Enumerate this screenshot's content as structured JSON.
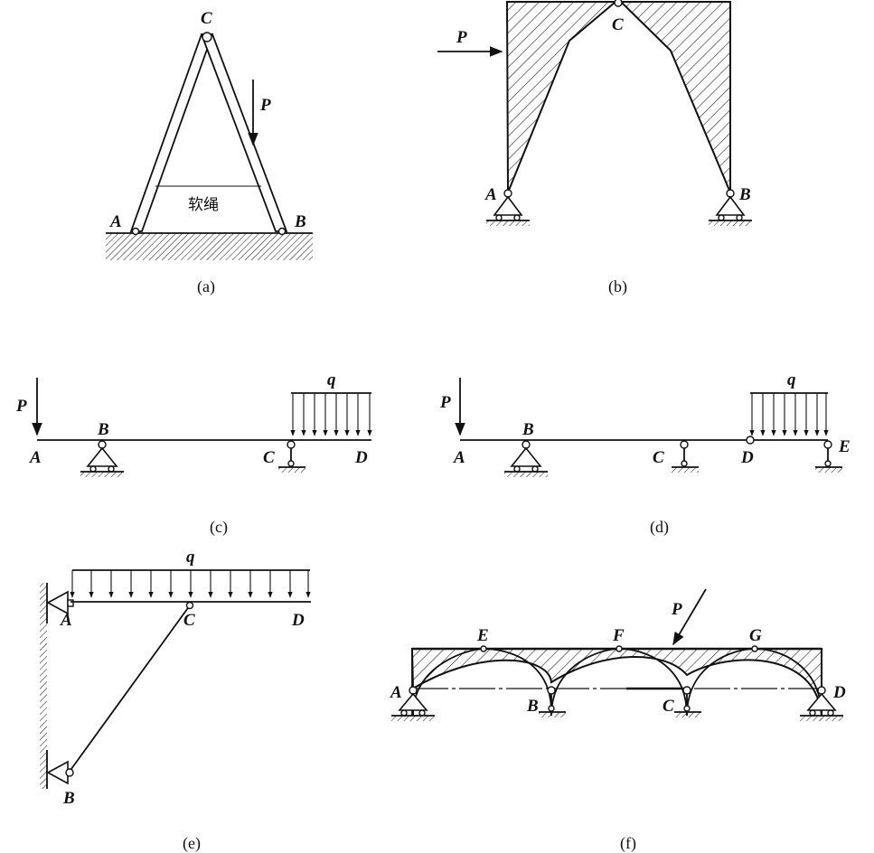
{
  "figures": {
    "a": {
      "caption": "(a)",
      "labels": {
        "A": "A",
        "B": "B",
        "C": "C",
        "P": "P",
        "rope": "软绳"
      }
    },
    "b": {
      "caption": "(b)",
      "labels": {
        "A": "A",
        "B": "B",
        "C": "C",
        "P": "P"
      }
    },
    "c": {
      "caption": "(c)",
      "labels": {
        "A": "A",
        "B": "B",
        "C": "C",
        "D": "D",
        "P": "P",
        "q": "q"
      }
    },
    "d": {
      "caption": "(d)",
      "labels": {
        "A": "A",
        "B": "B",
        "C": "C",
        "D": "D",
        "E": "E",
        "P": "P",
        "q": "q"
      }
    },
    "e": {
      "caption": "(e)",
      "labels": {
        "A": "A",
        "B": "B",
        "C": "C",
        "D": "D",
        "q": "q"
      }
    },
    "f": {
      "caption": "(f)",
      "labels": {
        "A": "A",
        "B": "B",
        "C": "C",
        "D": "D",
        "E": "E",
        "F": "F",
        "G": "G",
        "P": "P"
      }
    }
  }
}
